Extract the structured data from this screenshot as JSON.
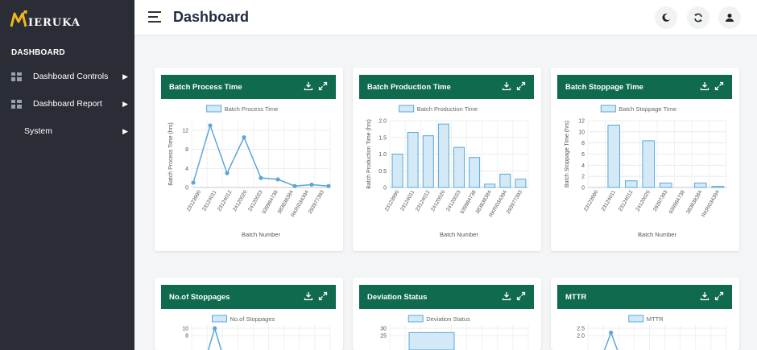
{
  "app": {
    "logo_text": "MIERUKA",
    "page_title": "Dashboard"
  },
  "sidebar": {
    "heading": "DASHBOARD",
    "items": [
      {
        "label": "Dashboard Controls",
        "icon": "grid-icon"
      },
      {
        "label": "Dashboard Report",
        "icon": "grid-icon"
      },
      {
        "label": "System",
        "icon": ""
      }
    ]
  },
  "header": {
    "buttons": [
      "moon-icon",
      "refresh-icon",
      "user-icon"
    ]
  },
  "colors": {
    "sidebar": "#2a2d36",
    "card_header": "#0f6a4f",
    "series_stroke": "#5aa7d8",
    "series_fill": "#d3e9f7"
  },
  "batch_labels": [
    "23123990",
    "23124011",
    "23124012",
    "24120020",
    "24120023",
    "939984738",
    "383838384",
    "RKRI034394",
    "293977393"
  ],
  "cards": [
    {
      "title": "Batch Process Time"
    },
    {
      "title": "Batch Production Time"
    },
    {
      "title": "Batch Stoppage Time"
    },
    {
      "title": "No.of Stoppages"
    },
    {
      "title": "Deviation Status"
    },
    {
      "title": "MTTR"
    }
  ],
  "chart_data": [
    {
      "type": "line",
      "title": "",
      "legend": "Batch Process Time",
      "xlabel": "Batch Number",
      "ylabel": "Batch Process Time (hrs)",
      "categories": [
        "23123990",
        "23124011",
        "23124012",
        "24120020",
        "24120023",
        "939984738",
        "383838384",
        "RKRI034394",
        "293977393"
      ],
      "values": [
        1.0,
        13.0,
        3.0,
        10.5,
        2.0,
        1.7,
        0.3,
        0.6,
        0.3
      ],
      "ylim": [
        0,
        14
      ],
      "ticks": [
        0,
        4,
        8,
        12
      ]
    },
    {
      "type": "bar",
      "title": "",
      "legend": "Batch Production Time",
      "xlabel": "Batch Number",
      "ylabel": "Batch Production Time (hrs)",
      "categories": [
        "23123990",
        "23124011",
        "23124012",
        "24120020",
        "24120023",
        "939984738",
        "383838384",
        "RKRI034394",
        "293977393"
      ],
      "values": [
        1.0,
        1.65,
        1.55,
        1.9,
        1.2,
        0.9,
        0.1,
        0.4,
        0.25
      ],
      "ylim": [
        0,
        2.0
      ],
      "ticks": [
        0,
        0.5,
        1.0,
        1.5,
        2.0
      ],
      "tick_labels": [
        "0",
        "0.5",
        "1.0",
        "1.5",
        "2.0"
      ]
    },
    {
      "type": "bar",
      "title": "",
      "legend": "Batch Stoppage Time",
      "xlabel": "Batch Number",
      "ylabel": "Batch Stoppage Time (hrs)",
      "categories": [
        "23123990",
        "23124011",
        "23124012",
        "24120020",
        "29397393",
        "939984738",
        "383838384",
        "RKRI034394"
      ],
      "values": [
        0,
        11.2,
        1.2,
        8.4,
        0.8,
        0,
        0.8,
        0.2
      ],
      "ylim": [
        0,
        12
      ],
      "ticks": [
        0,
        2,
        4,
        6,
        8,
        10,
        12
      ]
    },
    {
      "type": "line",
      "title": "",
      "legend": "No.of Stoppages",
      "values": [
        10
      ],
      "ticks_visible": [
        8,
        10
      ]
    },
    {
      "type": "bar",
      "title": "",
      "legend": "Deviation Status",
      "values": [
        27
      ],
      "ticks_visible": [
        25,
        30
      ]
    },
    {
      "type": "line",
      "title": "",
      "legend": "MTTR",
      "values": [
        2.2
      ],
      "ticks_visible": [
        2.0,
        2.5
      ],
      "tick_labels": [
        "2.0",
        "2.5"
      ]
    }
  ]
}
